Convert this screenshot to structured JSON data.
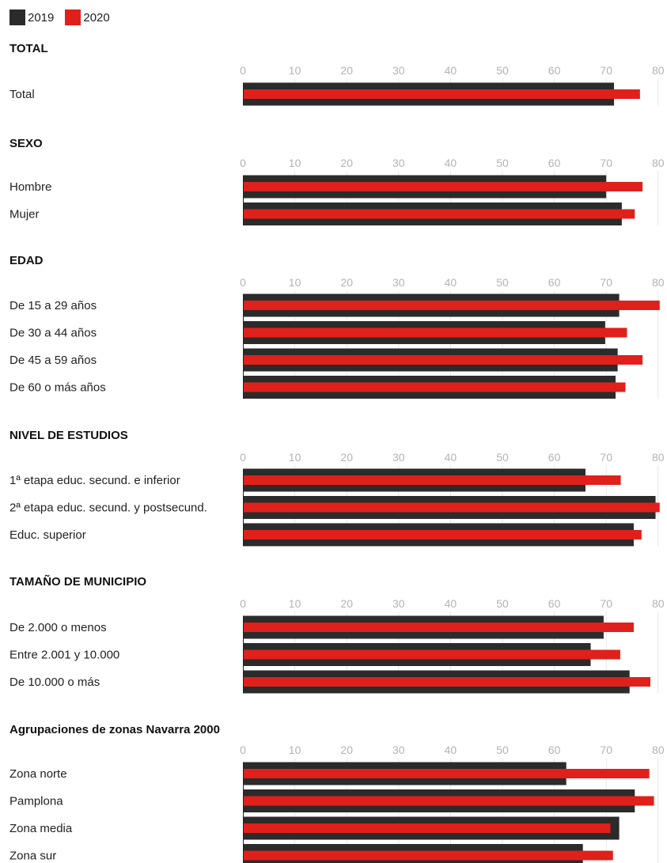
{
  "legend": [
    {
      "label": "2019",
      "color": "#2b2b2b"
    },
    {
      "label": "2020",
      "color": "#e0201b"
    }
  ],
  "chart_data": {
    "type": "bar",
    "orientation": "horizontal",
    "xlim": [
      0,
      80
    ],
    "ticks": [
      "0",
      "10",
      "20",
      "30",
      "40",
      "50",
      "60",
      "70",
      "80"
    ],
    "grid": true,
    "legend_position": "top-left",
    "series_names": [
      "2019",
      "2020"
    ],
    "sections": [
      {
        "title": "TOTAL",
        "categories": [
          "Total"
        ],
        "series": [
          {
            "name": "2019",
            "values": [
              71.5
            ]
          },
          {
            "name": "2020",
            "values": [
              76.5
            ]
          }
        ]
      },
      {
        "title": "SEXO",
        "categories": [
          "Hombre",
          "Mujer"
        ],
        "series": [
          {
            "name": "2019",
            "values": [
              70,
              73
            ]
          },
          {
            "name": "2020",
            "values": [
              77,
              75.5
            ]
          }
        ]
      },
      {
        "title": "EDAD",
        "categories": [
          "De 15 a 29 años",
          "De 30 a 44 años",
          "De 45 a 59 años",
          "De 60 o más años"
        ],
        "series": [
          {
            "name": "2019",
            "values": [
              72.5,
              69.8,
              72.2,
              71.8
            ]
          },
          {
            "name": "2020",
            "values": [
              81.5,
              74,
              77,
              73.7
            ]
          }
        ]
      },
      {
        "title": "NIVEL DE ESTUDIOS",
        "categories": [
          "1ª etapa educ. secund. e inferior",
          "2ª etapa educ. secund. y postsecund.",
          "Educ. superior"
        ],
        "series": [
          {
            "name": "2019",
            "values": [
              66,
              79.5,
              75.3
            ]
          },
          {
            "name": "2020",
            "values": [
              72.8,
              81.5,
              76.8
            ]
          }
        ]
      },
      {
        "title": "TAMAÑO DE MUNICIPIO",
        "categories": [
          "De 2.000 o menos",
          "Entre 2.001 y 10.000",
          "De 10.000 o más"
        ],
        "series": [
          {
            "name": "2019",
            "values": [
              69.5,
              67,
              74.5
            ]
          },
          {
            "name": "2020",
            "values": [
              75.3,
              72.7,
              78.5
            ]
          }
        ]
      },
      {
        "title": "Agrupaciones de zonas Navarra 2000",
        "categories": [
          "Zona norte",
          "Pamplona",
          "Zona media",
          "Zona sur"
        ],
        "series": [
          {
            "name": "2019",
            "values": [
              62.3,
              75.5,
              72.5,
              65.5
            ]
          },
          {
            "name": "2020",
            "values": [
              78.3,
              79.2,
              70.8,
              71.3
            ]
          }
        ]
      }
    ]
  }
}
